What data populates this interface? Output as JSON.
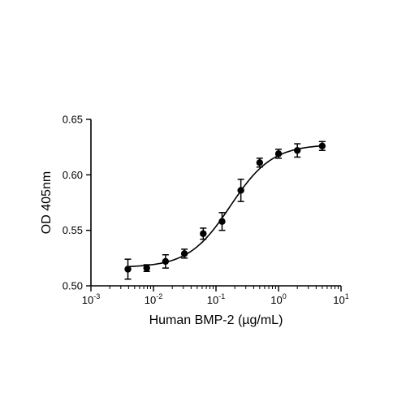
{
  "chart_data": {
    "type": "scatter",
    "title": "",
    "xlabel": "Human BMP-2 (µg/mL)",
    "ylabel": "OD 405nm",
    "xscale": "log",
    "xlim": [
      0.001,
      10
    ],
    "ylim": [
      0.5,
      0.65
    ],
    "x_ticks": [
      {
        "base": "10",
        "exp": "-3",
        "value": 0.001
      },
      {
        "base": "10",
        "exp": "-2",
        "value": 0.01
      },
      {
        "base": "10",
        "exp": "-1",
        "value": 0.1
      },
      {
        "base": "10",
        "exp": "0",
        "value": 1
      },
      {
        "base": "10",
        "exp": "1",
        "value": 10
      }
    ],
    "y_ticks": [
      {
        "label": "0.50",
        "value": 0.5
      },
      {
        "label": "0.55",
        "value": 0.55
      },
      {
        "label": "0.60",
        "value": 0.6
      },
      {
        "label": "0.65",
        "value": 0.65
      }
    ],
    "grid": false,
    "legend": "none",
    "series": [
      {
        "points": [
          {
            "x": 0.0039,
            "y": 0.515,
            "err": 0.009
          },
          {
            "x": 0.0078,
            "y": 0.516,
            "err": 0.003
          },
          {
            "x": 0.0156,
            "y": 0.522,
            "err": 0.006
          },
          {
            "x": 0.03125,
            "y": 0.529,
            "err": 0.004
          },
          {
            "x": 0.0625,
            "y": 0.547,
            "err": 0.005
          },
          {
            "x": 0.125,
            "y": 0.558,
            "err": 0.008
          },
          {
            "x": 0.25,
            "y": 0.586,
            "err": 0.01
          },
          {
            "x": 0.5,
            "y": 0.611,
            "err": 0.004
          },
          {
            "x": 1,
            "y": 0.619,
            "err": 0.004
          },
          {
            "x": 2,
            "y": 0.622,
            "err": 0.006
          },
          {
            "x": 5,
            "y": 0.626,
            "err": 0.004
          }
        ],
        "fit": {
          "model": "4PL",
          "bottom": 0.5165,
          "top": 0.6275,
          "ec50": 0.17,
          "hill": 1.3
        }
      }
    ],
    "colors": {
      "marker": "#000000",
      "line": "#000000",
      "axis": "#000000"
    }
  }
}
